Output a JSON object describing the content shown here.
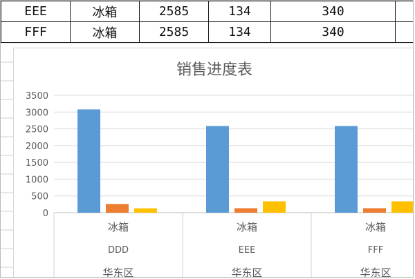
{
  "sheet": {
    "rows": [
      {
        "name": "EEE",
        "product": "冰箱",
        "v1": "2585",
        "v2": "134",
        "v3": "340"
      },
      {
        "name": "FFF",
        "product": "冰箱",
        "v1": "2585",
        "v2": "134",
        "v3": "340"
      }
    ]
  },
  "chart_data": {
    "type": "bar",
    "title": "销售进度表",
    "ylim": [
      0,
      3500
    ],
    "y_ticks": [
      "0",
      "500",
      "1000",
      "1500",
      "2000",
      "2500",
      "3000",
      "3500"
    ],
    "grid": true,
    "categories": [
      {
        "product": "冰箱",
        "name": "DDD",
        "region": "华东区"
      },
      {
        "product": "冰箱",
        "name": "EEE",
        "region": "华东区"
      },
      {
        "product": "冰箱",
        "name": "FFF",
        "region": "华东区"
      }
    ],
    "series": [
      {
        "color": "#5B9BD5",
        "values": [
          3080,
          2585,
          2585
        ]
      },
      {
        "color": "#ED7D31",
        "values": [
          260,
          134,
          134
        ]
      },
      {
        "color": "#FFC000",
        "values": [
          130,
          340,
          340
        ]
      }
    ]
  }
}
